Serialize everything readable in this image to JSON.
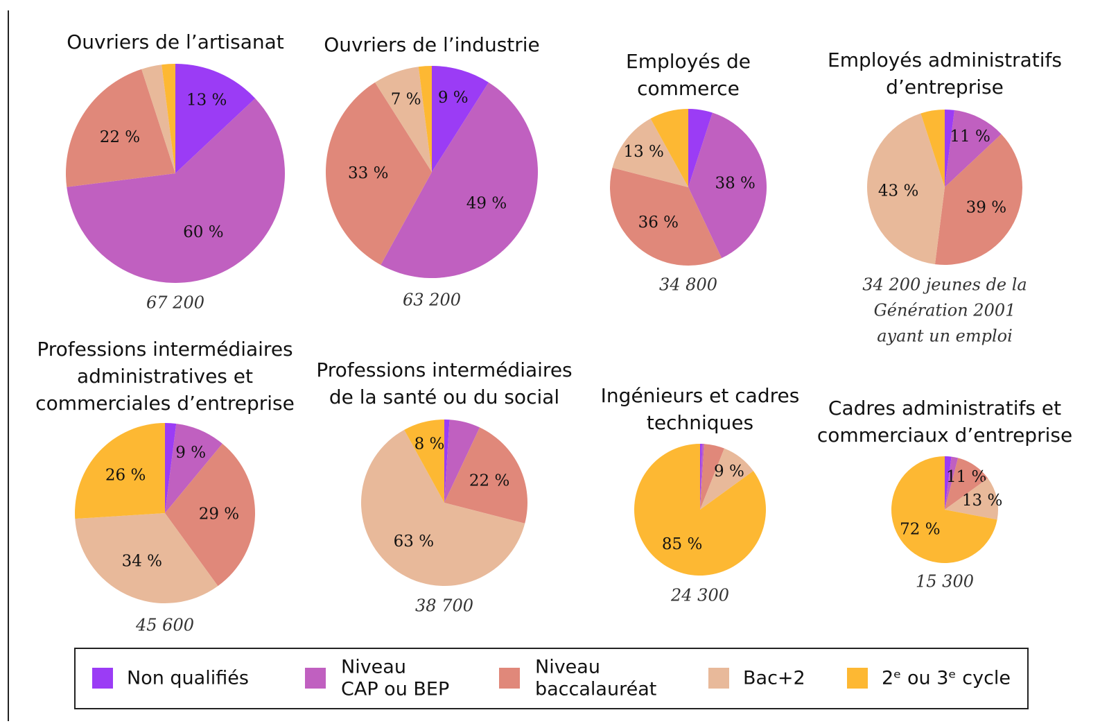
{
  "chart_data": [
    {
      "type": "pie",
      "title": [
        "Ouvriers de l’artisanat"
      ],
      "values": [
        13,
        60,
        22,
        3,
        2
      ],
      "value_labels": [
        "13 %",
        "60 %",
        "22 %",
        null,
        null
      ],
      "note": [
        "67 200"
      ]
    },
    {
      "type": "pie",
      "title": [
        "Ouvriers de l’industrie"
      ],
      "values": [
        9,
        49,
        33,
        7,
        2
      ],
      "value_labels": [
        "9 %",
        "49 %",
        "33 %",
        "7 %",
        null
      ],
      "note": [
        "63 200"
      ]
    },
    {
      "type": "pie",
      "title": [
        "Employés de",
        "commerce"
      ],
      "values": [
        5,
        38,
        36,
        13,
        8
      ],
      "value_labels": [
        null,
        "38 %",
        "36 %",
        "13 %",
        null
      ],
      "note": [
        "34 800"
      ]
    },
    {
      "type": "pie",
      "title": [
        "Employés administratifs",
        "d’entreprise"
      ],
      "values": [
        2,
        11,
        39,
        43,
        5
      ],
      "value_labels": [
        null,
        "11 %",
        "39 %",
        "43 %",
        null
      ],
      "note": [
        "34 200 jeunes de la",
        "Génération 2001",
        "ayant un emploi"
      ]
    },
    {
      "type": "pie",
      "title": [
        "Professions intermédiaires",
        "administratives et",
        "commerciales d’entreprise"
      ],
      "values": [
        2,
        9,
        29,
        34,
        26
      ],
      "value_labels": [
        null,
        "9 %",
        "29 %",
        "34 %",
        "26 %"
      ],
      "note": [
        "45 600"
      ]
    },
    {
      "type": "pie",
      "title": [
        "Professions intermédiaires",
        "de la santé ou du social"
      ],
      "values": [
        1,
        6,
        22,
        63,
        8
      ],
      "value_labels": [
        null,
        null,
        "22 %",
        "63 %",
        "8 %"
      ],
      "note": [
        "38 700"
      ]
    },
    {
      "type": "pie",
      "title": [
        "Ingénieurs et cadres",
        "techniques"
      ],
      "values": [
        0.5,
        0.5,
        5,
        9,
        85
      ],
      "value_labels": [
        null,
        null,
        null,
        "9 %",
        "85 %"
      ],
      "note": [
        "24 300"
      ]
    },
    {
      "type": "pie",
      "title": [
        "Cadres administratifs et",
        "commerciaux d’entreprise"
      ],
      "values": [
        2,
        2,
        11,
        13,
        72
      ],
      "value_labels": [
        null,
        null,
        "11 %",
        "13 %",
        "72 %"
      ],
      "note": [
        "15 300"
      ]
    }
  ],
  "legend": {
    "categories": [
      "Non qualifiés",
      [
        "Niveau",
        "CAP ou BEP"
      ],
      [
        "Niveau",
        "baccalauréat"
      ],
      "Bac+2",
      "2ᵉ ou 3ᵉ cycle"
    ],
    "colors": [
      "#9b3cf5",
      "#c060c0",
      "#e0887a",
      "#e8b99a",
      "#fdb833"
    ]
  }
}
